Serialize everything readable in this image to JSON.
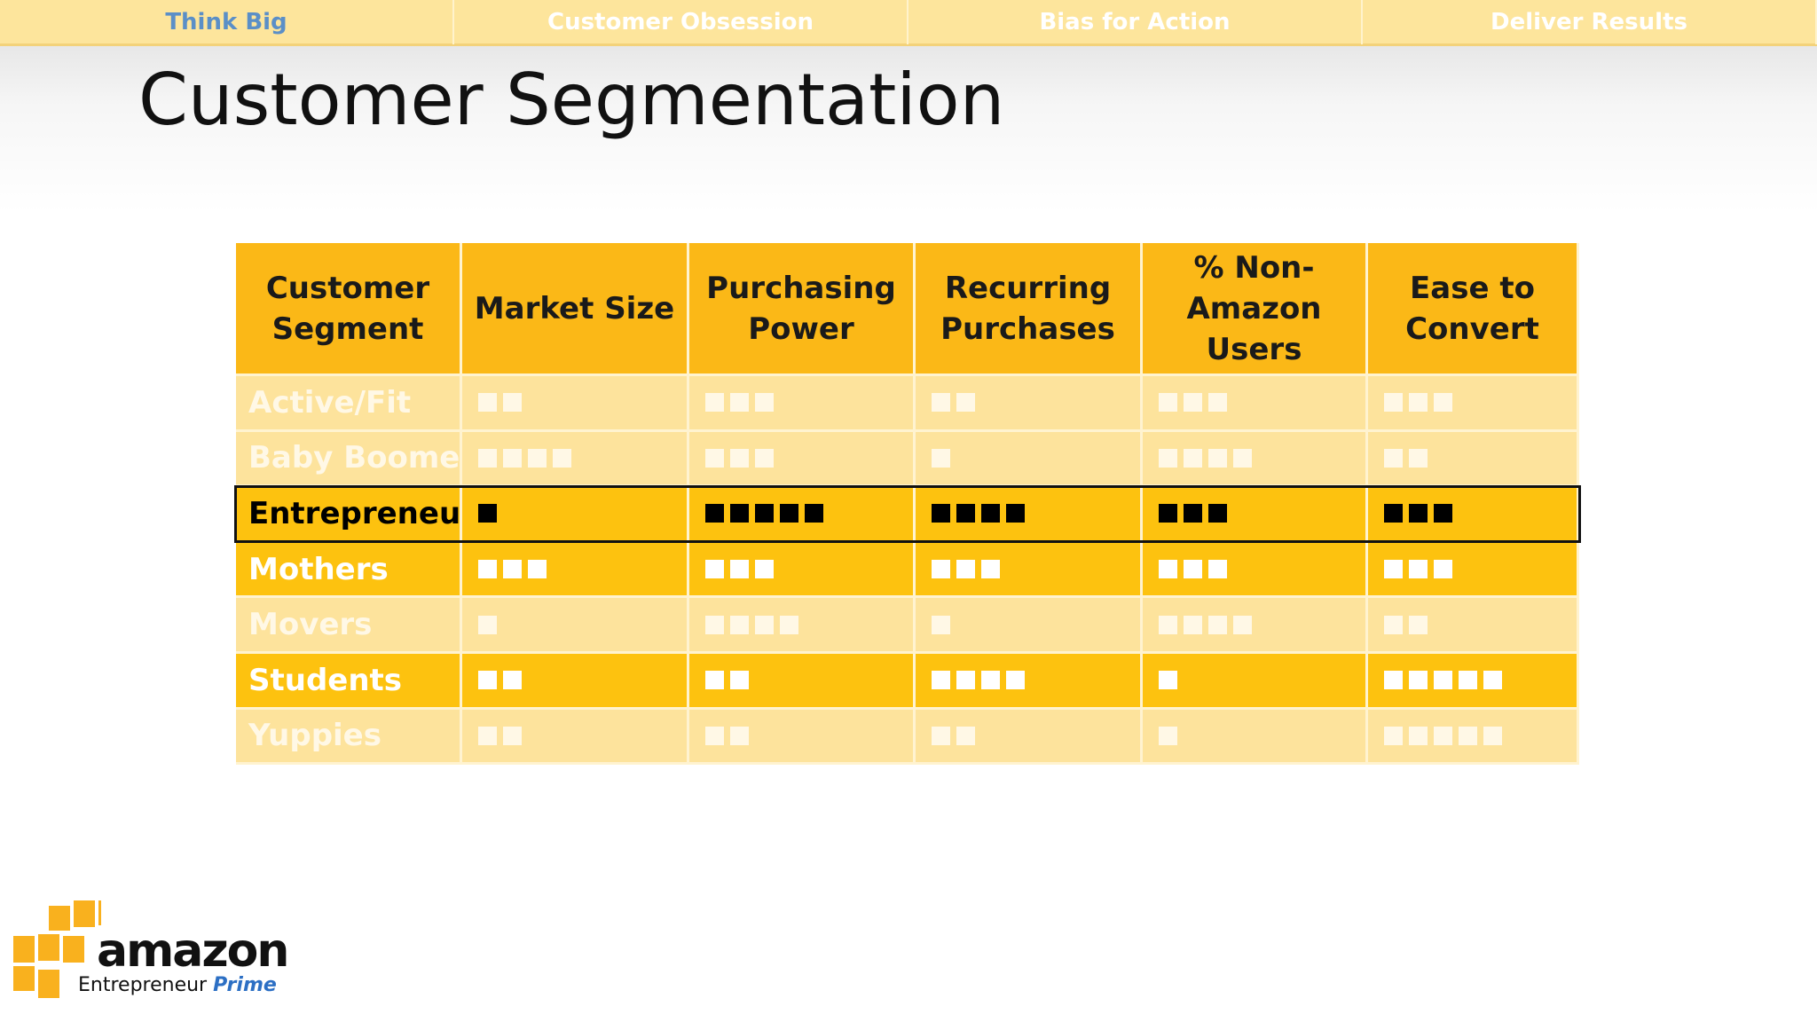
{
  "nav": {
    "tabs": [
      "Think Big",
      "Customer Obsession",
      "Bias for Action",
      "Deliver Results"
    ],
    "active": 0
  },
  "title": "Customer Segmentation",
  "table": {
    "header": [
      "Customer Segment",
      "Market Size",
      "Purchasing Power",
      "Recurring Purchases",
      "% Non-Amazon Users",
      "Ease to Convert"
    ],
    "rows": [
      {
        "segment": "Active/Fit",
        "style": "faded",
        "ratings": [
          2,
          3,
          2,
          3,
          3
        ]
      },
      {
        "segment": "Baby Boomers",
        "style": "faded",
        "ratings": [
          4,
          3,
          1,
          4,
          2
        ]
      },
      {
        "segment": "Entrepreneurs",
        "style": "highlight",
        "ratings": [
          1,
          5,
          4,
          3,
          3
        ]
      },
      {
        "segment": "Mothers",
        "style": "strong",
        "ratings": [
          3,
          3,
          3,
          3,
          3
        ]
      },
      {
        "segment": "Movers",
        "style": "faded",
        "ratings": [
          1,
          4,
          1,
          4,
          2
        ]
      },
      {
        "segment": "Students",
        "style": "strong",
        "ratings": [
          2,
          2,
          4,
          1,
          5
        ]
      },
      {
        "segment": "Yuppies",
        "style": "faded",
        "ratings": [
          2,
          2,
          2,
          1,
          5
        ]
      }
    ]
  },
  "logo": {
    "brand": "amazon",
    "line": "Entrepreneur",
    "accent": "Prime"
  }
}
